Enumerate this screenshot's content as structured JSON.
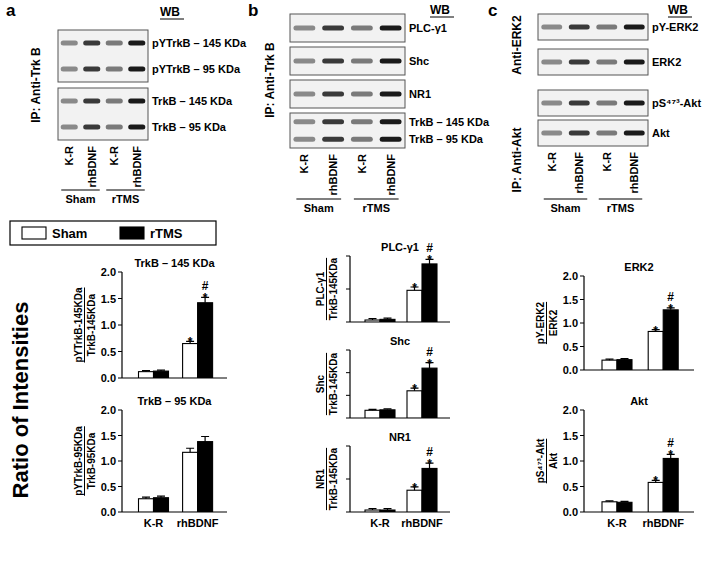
{
  "figure": {
    "y_title": "Ratio of Intensities",
    "panels": [
      {
        "letter": "a",
        "wb": "WB",
        "side_labels": [
          "IP: Anti-Trk B"
        ],
        "blots": [
          {
            "labels": [
              "pYTrkB – 145 KDa",
              "pYTrkB – 95 KDa"
            ]
          },
          {
            "labels": [
              "TrkB – 145 KDa",
              "TrkB – 95 KDa"
            ]
          }
        ],
        "lanes": [
          "K-R",
          "rhBDNF",
          "K-R",
          "rhBDNF"
        ],
        "groups": [
          "Sham",
          "rTMS"
        ]
      },
      {
        "letter": "b",
        "wb": "WB",
        "side_labels": [
          "IP: Anti-Trk B"
        ],
        "blots": [
          {
            "labels": [
              "PLC-γ1"
            ]
          },
          {
            "labels": [
              "Shc"
            ]
          },
          {
            "labels": [
              "NR1"
            ]
          },
          {
            "labels": [
              "TrkB – 145 KDa",
              "TrkB –  95 KDa"
            ]
          }
        ],
        "lanes": [
          "K-R",
          "rhBDNF",
          "K-R",
          "rhBDNF"
        ],
        "groups": [
          "Sham",
          "rTMS"
        ]
      },
      {
        "letter": "c",
        "wb": "WB",
        "side_labels": [
          "Anti-ERK2",
          "IP: Anti-Akt"
        ],
        "blots": [
          {
            "labels": [
              "pY-ERK2"
            ]
          },
          {
            "labels": [
              "ERK2"
            ]
          },
          {
            "labels": [
              "pS⁴⁷³-Akt"
            ]
          },
          {
            "labels": [
              "Akt"
            ]
          }
        ],
        "lanes": [
          "K-R",
          "rhBDNF",
          "K-R",
          "rhBDNF"
        ],
        "groups": [
          "Sham",
          "rTMS"
        ]
      }
    ]
  },
  "chart_data": [
    {
      "type": "bar",
      "title": "TrkB – 145 KDa",
      "ylabel": [
        "pYTrkB-145KDa",
        "TrkB-145KDa"
      ],
      "legend": "top",
      "ylim": [
        0,
        2
      ],
      "yticks": [
        {
          "value": 0,
          "label": "0.0"
        },
        0.5,
        {
          "value": 1,
          "label": "1.0"
        },
        1.5,
        {
          "value": 2,
          "label": "2.0"
        }
      ],
      "series": [
        {
          "name": "Sham",
          "color": "#ffffff",
          "values": [
            0.12,
            0.65
          ],
          "errors": [
            0.02,
            0.04
          ],
          "annotations": [
            null,
            [
              "*"
            ]
          ]
        },
        {
          "name": "rTMS",
          "color": "#000000",
          "values": [
            0.13,
            1.42
          ],
          "errors": [
            0.02,
            0.1
          ],
          "annotations": [
            null,
            [
              "#",
              "*"
            ]
          ]
        }
      ]
    },
    {
      "type": "bar",
      "title": "TrkB – 95 KDa",
      "ylabel": [
        "pYTrkB-95KDa",
        "TrkB-95KDa"
      ],
      "categories": [
        "K-R",
        "rhBDNF"
      ],
      "ylim": [
        0,
        2
      ],
      "yticks": [
        {
          "value": 0,
          "label": "0.0"
        },
        0.5,
        {
          "value": 1,
          "label": "1.0"
        },
        1.5,
        {
          "value": 2,
          "label": "2.0"
        }
      ],
      "series": [
        {
          "color": "#ffffff",
          "values": [
            0.26,
            1.17
          ],
          "errors": [
            0.03,
            0.08
          ]
        },
        {
          "color": "#000000",
          "values": [
            0.28,
            1.38
          ],
          "errors": [
            0.03,
            0.1
          ]
        }
      ]
    },
    {
      "type": "bar",
      "title": "PLC-γ1",
      "ylabel": [
        "PLC-γ1",
        "TrkB-145KDa"
      ],
      "tick_labels": false,
      "ylim": [
        0,
        1
      ],
      "yticks": [
        0,
        0.5,
        1
      ],
      "series": [
        {
          "color": "#ffffff",
          "values": [
            0.03,
            0.48
          ],
          "errors": [
            0.02,
            0.05
          ],
          "annotations": [
            null,
            [
              "*"
            ]
          ]
        },
        {
          "color": "#000000",
          "values": [
            0.04,
            0.88
          ],
          "errors": [
            0.02,
            0.07
          ],
          "annotations": [
            null,
            [
              "#",
              "*"
            ]
          ]
        }
      ]
    },
    {
      "type": "bar",
      "title": "Shc",
      "ylabel": [
        "Shc",
        "TrkB-145KDa"
      ],
      "tick_labels": false,
      "ylim": [
        0,
        1.5
      ],
      "yticks": [
        0,
        0.5,
        1,
        1.5
      ],
      "series": [
        {
          "color": "#ffffff",
          "values": [
            0.17,
            0.6
          ],
          "errors": [
            0.02,
            0.06
          ],
          "annotations": [
            null,
            [
              "*"
            ]
          ]
        },
        {
          "color": "#000000",
          "values": [
            0.18,
            1.1
          ],
          "errors": [
            0.02,
            0.12
          ],
          "annotations": [
            null,
            [
              "#",
              "*"
            ]
          ]
        }
      ]
    },
    {
      "type": "bar",
      "title": "NR1",
      "ylabel": [
        "NR1",
        "TrkB-145KDa"
      ],
      "tick_labels": false,
      "categories": [
        "K-R",
        "rhBDNF"
      ],
      "ylim": [
        0,
        1
      ],
      "yticks": [
        0,
        0.5,
        1
      ],
      "series": [
        {
          "color": "#ffffff",
          "values": [
            0.03,
            0.33
          ],
          "errors": [
            0.02,
            0.05
          ],
          "annotations": [
            null,
            [
              "*"
            ]
          ]
        },
        {
          "color": "#000000",
          "values": [
            0.03,
            0.66
          ],
          "errors": [
            0.02,
            0.08
          ],
          "annotations": [
            null,
            [
              "#",
              "*"
            ]
          ]
        }
      ]
    },
    {
      "type": "bar",
      "title": "ERK2",
      "ylabel": [
        "pY-ERK2",
        "ERK2"
      ],
      "ylim": [
        0,
        2
      ],
      "yticks": [
        {
          "value": 0,
          "label": "0.0"
        },
        0.5,
        {
          "value": 1,
          "label": "1.0"
        },
        1.5,
        {
          "value": 2,
          "label": "2.0"
        }
      ],
      "series": [
        {
          "color": "#ffffff",
          "values": [
            0.21,
            0.82
          ],
          "errors": [
            0.02,
            0.04
          ],
          "annotations": [
            null,
            [
              "*"
            ]
          ]
        },
        {
          "color": "#000000",
          "values": [
            0.22,
            1.28
          ],
          "errors": [
            0.02,
            0.04
          ],
          "annotations": [
            null,
            [
              "#",
              "*"
            ]
          ]
        }
      ]
    },
    {
      "type": "bar",
      "title": "Akt",
      "ylabel": [
        "pS⁴⁷³-Akt",
        "Akt"
      ],
      "categories": [
        "K-R",
        "rhBDNF"
      ],
      "ylim": [
        0,
        2
      ],
      "yticks": [
        {
          "value": 0,
          "label": "0.0"
        },
        0.5,
        {
          "value": 1,
          "label": "1.0"
        },
        1.5,
        {
          "value": 2,
          "label": "2.0"
        }
      ],
      "series": [
        {
          "color": "#ffffff",
          "values": [
            0.2,
            0.58
          ],
          "errors": [
            0.02,
            0.04
          ],
          "annotations": [
            null,
            [
              "*"
            ]
          ]
        },
        {
          "color": "#000000",
          "values": [
            0.19,
            1.05
          ],
          "errors": [
            0.02,
            0.08
          ],
          "annotations": [
            null,
            [
              "#",
              "*"
            ]
          ]
        }
      ]
    }
  ]
}
